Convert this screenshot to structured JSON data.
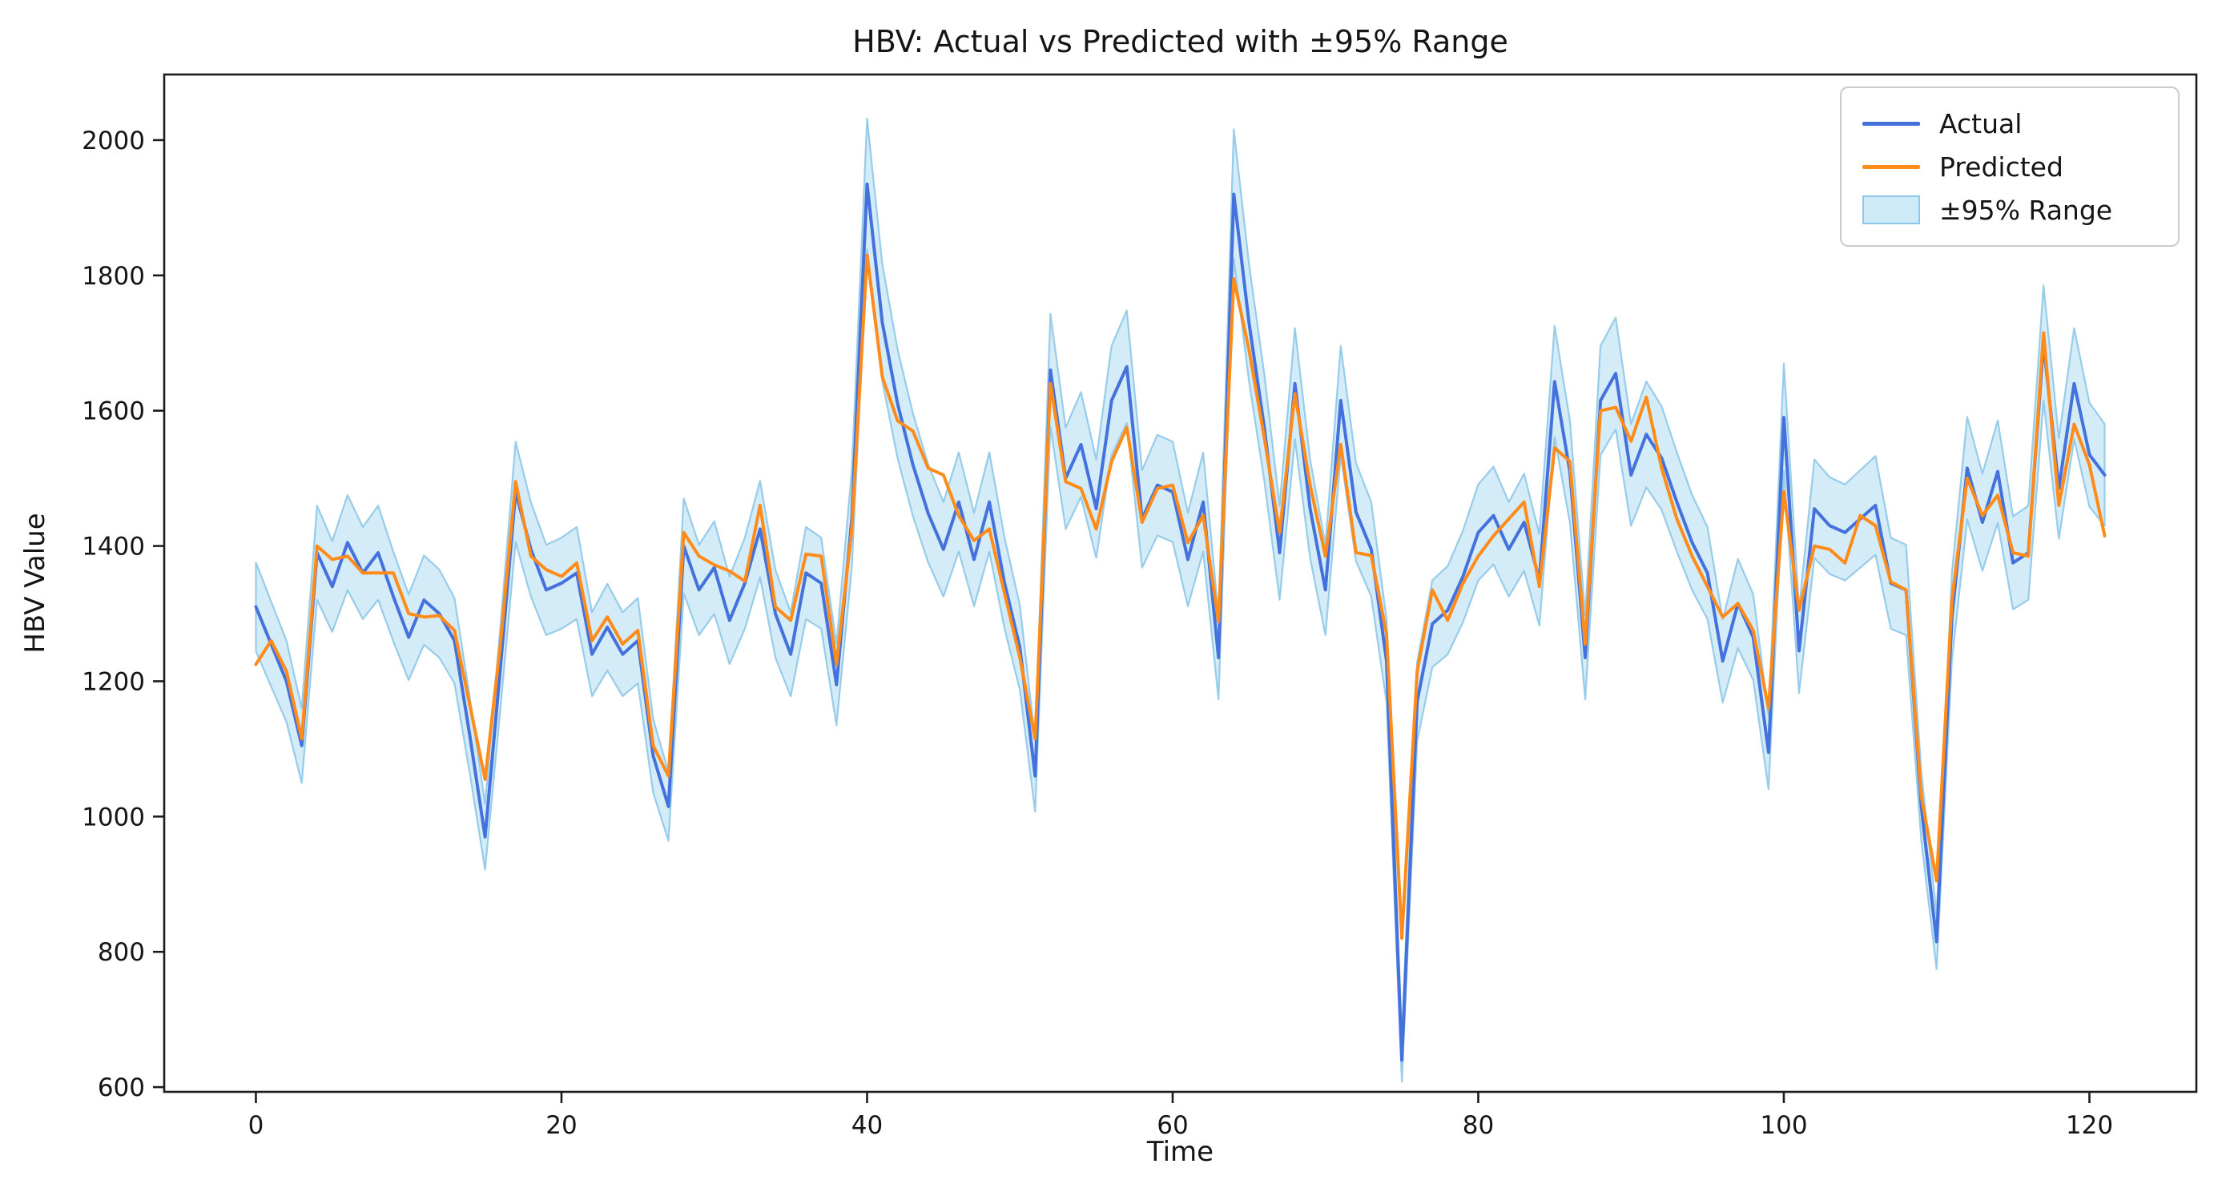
{
  "figure": {
    "title": "HBV: Actual vs Predicted with ±95% Range",
    "xlabel": "Time",
    "ylabel": "HBV Value"
  },
  "legend": {
    "actual_label": "Actual",
    "predicted_label": "Predicted",
    "range_label": "±95% Range"
  },
  "chart_data": {
    "type": "line",
    "title": "HBV: Actual vs Predicted with ±95% Range",
    "xlabel": "Time",
    "ylabel": "HBV Value",
    "x": "index (0..121)",
    "xlim": [
      -6,
      127
    ],
    "ylim": [
      593,
      2097
    ],
    "xticks": [
      0,
      20,
      40,
      60,
      80,
      100,
      120
    ],
    "yticks": [
      600,
      800,
      1000,
      1200,
      1400,
      1600,
      1800,
      2000
    ],
    "grid": false,
    "legend_position": "upper right",
    "band_fraction": 0.05,
    "band_note": "shaded band = Actual value ±5% (±95% range)",
    "series": [
      {
        "name": "Actual",
        "values": [
          1310,
          1255,
          1200,
          1105,
          1390,
          1340,
          1405,
          1360,
          1390,
          1325,
          1265,
          1320,
          1300,
          1260,
          1120,
          970,
          1220,
          1480,
          1395,
          1335,
          1345,
          1360,
          1240,
          1280,
          1240,
          1260,
          1090,
          1015,
          1400,
          1335,
          1368,
          1290,
          1345,
          1425,
          1300,
          1240,
          1360,
          1345,
          1195,
          1440,
          1935,
          1730,
          1610,
          1520,
          1448,
          1395,
          1465,
          1380,
          1465,
          1345,
          1250,
          1060,
          1660,
          1500,
          1550,
          1455,
          1615,
          1665,
          1440,
          1490,
          1480,
          1380,
          1465,
          1235,
          1920,
          1730,
          1575,
          1390,
          1640,
          1455,
          1335,
          1615,
          1450,
          1395,
          1230,
          640,
          1170,
          1285,
          1305,
          1355,
          1420,
          1445,
          1395,
          1435,
          1350,
          1643,
          1510,
          1235,
          1615,
          1655,
          1505,
          1565,
          1530,
          1465,
          1405,
          1360,
          1230,
          1315,
          1265,
          1095,
          1590,
          1245,
          1455,
          1430,
          1420,
          1440,
          1460,
          1345,
          1335,
          1015,
          815,
          1295,
          1515,
          1435,
          1510,
          1375,
          1390,
          1700,
          1485,
          1640,
          1535,
          1505
        ]
      },
      {
        "name": "Predicted",
        "values": [
          1225,
          1260,
          1215,
          1115,
          1400,
          1380,
          1385,
          1360,
          1360,
          1360,
          1300,
          1295,
          1297,
          1275,
          1165,
          1055,
          1255,
          1495,
          1385,
          1365,
          1355,
          1375,
          1260,
          1295,
          1255,
          1275,
          1105,
          1060,
          1420,
          1385,
          1372,
          1363,
          1348,
          1460,
          1310,
          1290,
          1388,
          1385,
          1225,
          1424,
          1830,
          1650,
          1585,
          1570,
          1515,
          1505,
          1445,
          1408,
          1425,
          1330,
          1235,
          1115,
          1640,
          1495,
          1485,
          1425,
          1525,
          1575,
          1435,
          1485,
          1490,
          1405,
          1445,
          1288,
          1795,
          1690,
          1560,
          1420,
          1625,
          1490,
          1385,
          1550,
          1390,
          1386,
          1270,
          820,
          1215,
          1335,
          1290,
          1345,
          1385,
          1415,
          1440,
          1465,
          1340,
          1545,
          1525,
          1255,
          1600,
          1605,
          1555,
          1620,
          1515,
          1440,
          1385,
          1340,
          1295,
          1315,
          1275,
          1160,
          1480,
          1305,
          1400,
          1395,
          1375,
          1445,
          1430,
          1347,
          1335,
          1030,
          905,
          1320,
          1500,
          1445,
          1475,
          1390,
          1385,
          1715,
          1460,
          1580,
          1520,
          1415
        ]
      }
    ],
    "colors": {
      "actual": "#4471db",
      "predicted": "#ff8c1a",
      "band_fill": "#aedcf0",
      "band_edge": "#8ec8e8",
      "axis": "#1c1c1c",
      "text": "#151515"
    }
  }
}
